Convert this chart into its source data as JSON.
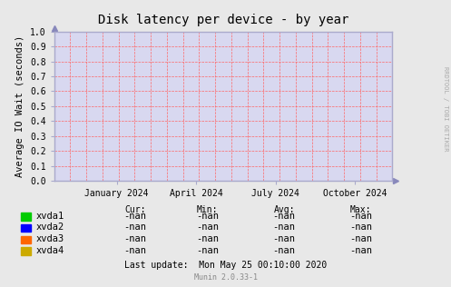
{
  "title": "Disk latency per device - by year",
  "ylabel": "Average IO Wait (seconds)",
  "bg_color": "#e8e8e8",
  "plot_bg_color": "#d8d8f0",
  "grid_color": "#ff6666",
  "border_color": "#aaaacc",
  "ylim": [
    0.0,
    1.0
  ],
  "yticks": [
    0.0,
    0.1,
    0.2,
    0.3,
    0.4,
    0.5,
    0.6,
    0.7,
    0.8,
    0.9,
    1.0
  ],
  "xtick_positions": [
    0.185,
    0.42,
    0.655,
    0.89
  ],
  "xtick_labels": [
    "January 2024",
    "April 2024",
    "July 2024",
    "October 2024"
  ],
  "legend_entries": [
    {
      "label": "xvda1",
      "color": "#00cc00"
    },
    {
      "label": "xvda2",
      "color": "#0000ff"
    },
    {
      "label": "xvda3",
      "color": "#ff6600"
    },
    {
      "label": "xvda4",
      "color": "#ccaa00"
    }
  ],
  "table_headers": [
    "Cur:",
    "Min:",
    "Avg:",
    "Max:"
  ],
  "table_values": [
    [
      "-nan",
      "-nan",
      "-nan",
      "-nan"
    ],
    [
      "-nan",
      "-nan",
      "-nan",
      "-nan"
    ],
    [
      "-nan",
      "-nan",
      "-nan",
      "-nan"
    ],
    [
      "-nan",
      "-nan",
      "-nan",
      "-nan"
    ]
  ],
  "last_update": "Last update:  Mon May 25 00:10:00 2020",
  "munin_version": "Munin 2.0.33-1",
  "rrdtool_label": "RRDTOOL / TOBI OETIKER",
  "font_family": "DejaVu Sans Mono"
}
